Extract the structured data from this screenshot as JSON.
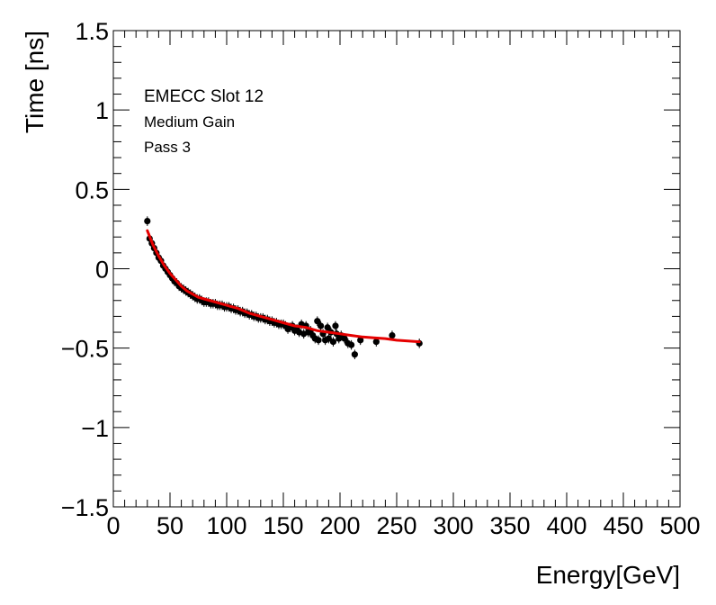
{
  "chart_data": {
    "type": "scatter",
    "xlabel": "Energy[GeV]",
    "ylabel": "Time [ns]",
    "xlim": [
      0,
      500
    ],
    "ylim": [
      -1.5,
      1.5
    ],
    "x_ticks": [
      "0",
      "50",
      "100",
      "150",
      "200",
      "250",
      "300",
      "350",
      "400",
      "450",
      "500"
    ],
    "y_ticks": [
      "−1.5",
      "−1",
      "−0.5",
      "0",
      "0.5",
      "1",
      "1.5"
    ],
    "grid": false,
    "legend": "none",
    "annotations": [
      "EMECC Slot 12",
      "Medium Gain",
      "Pass 3"
    ],
    "series": [
      {
        "kind": "points_with_error_bars",
        "color": "#000000",
        "x": [
          30,
          32,
          34,
          36,
          38,
          40,
          42,
          44,
          46,
          48,
          50,
          52,
          54,
          56,
          58,
          60,
          62,
          64,
          66,
          68,
          70,
          72,
          74,
          76,
          78,
          80,
          82,
          84,
          86,
          88,
          90,
          92,
          94,
          96,
          98,
          100,
          102,
          104,
          106,
          108,
          110,
          112,
          114,
          116,
          118,
          120,
          122,
          124,
          126,
          128,
          130,
          132,
          134,
          136,
          138,
          140,
          142,
          144,
          146,
          148,
          150,
          152,
          154,
          156,
          158,
          160,
          162,
          164,
          166,
          168,
          170,
          172,
          174,
          176,
          178,
          180,
          181,
          183,
          185,
          187,
          189,
          190,
          192,
          194,
          196,
          197,
          199,
          201,
          204,
          207,
          210,
          213,
          218,
          232,
          246,
          270
        ],
        "y": [
          0.3,
          0.19,
          0.16,
          0.13,
          0.1,
          0.07,
          0.05,
          0.02,
          0.0,
          -0.02,
          -0.04,
          -0.06,
          -0.08,
          -0.09,
          -0.11,
          -0.12,
          -0.13,
          -0.14,
          -0.15,
          -0.16,
          -0.17,
          -0.18,
          -0.19,
          -0.19,
          -0.2,
          -0.21,
          -0.21,
          -0.21,
          -0.22,
          -0.22,
          -0.22,
          -0.23,
          -0.23,
          -0.23,
          -0.24,
          -0.24,
          -0.24,
          -0.25,
          -0.25,
          -0.26,
          -0.26,
          -0.27,
          -0.27,
          -0.28,
          -0.28,
          -0.29,
          -0.29,
          -0.3,
          -0.3,
          -0.31,
          -0.31,
          -0.31,
          -0.32,
          -0.32,
          -0.33,
          -0.33,
          -0.34,
          -0.34,
          -0.35,
          -0.35,
          -0.35,
          -0.36,
          -0.38,
          -0.37,
          -0.36,
          -0.39,
          -0.38,
          -0.4,
          -0.35,
          -0.41,
          -0.36,
          -0.4,
          -0.39,
          -0.42,
          -0.44,
          -0.33,
          -0.45,
          -0.36,
          -0.41,
          -0.45,
          -0.37,
          -0.44,
          -0.4,
          -0.46,
          -0.36,
          -0.41,
          -0.44,
          -0.42,
          -0.44,
          -0.47,
          -0.48,
          -0.54,
          -0.45,
          -0.46,
          -0.42,
          -0.47
        ],
        "y_err": 0.03
      },
      {
        "kind": "fit_line",
        "color": "#e60000",
        "x": [
          30,
          35,
          40,
          45,
          50,
          55,
          60,
          65,
          70,
          75,
          80,
          90,
          100,
          110,
          120,
          130,
          140,
          150,
          160,
          170,
          180,
          190,
          200,
          210,
          220,
          230,
          240,
          250,
          260,
          270
        ],
        "y": [
          0.24,
          0.15,
          0.08,
          0.02,
          -0.03,
          -0.07,
          -0.11,
          -0.14,
          -0.16,
          -0.18,
          -0.19,
          -0.21,
          -0.23,
          -0.25,
          -0.28,
          -0.3,
          -0.32,
          -0.34,
          -0.36,
          -0.37,
          -0.39,
          -0.4,
          -0.41,
          -0.42,
          -0.43,
          -0.435,
          -0.44,
          -0.45,
          -0.455,
          -0.46
        ]
      }
    ]
  }
}
